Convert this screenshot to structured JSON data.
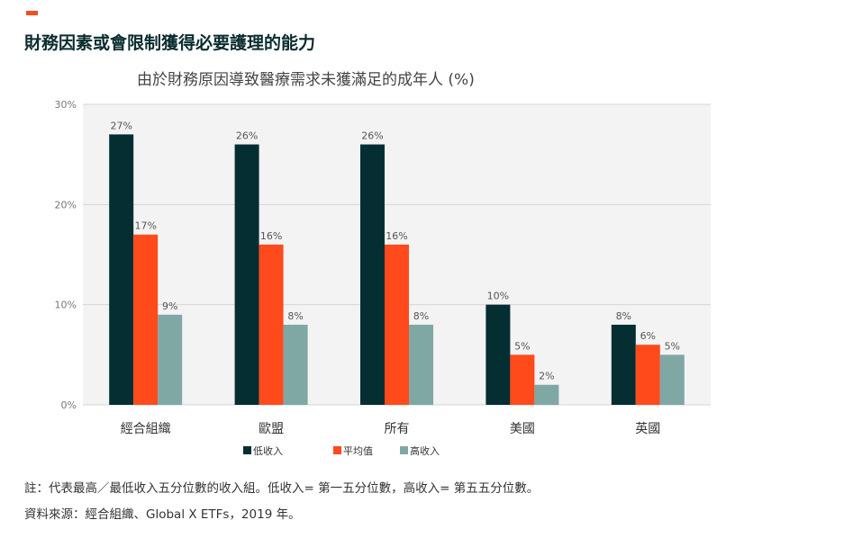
{
  "header": {
    "title": "財務因素或會限制獲得必要護理的能力"
  },
  "colors": {
    "accent": "#f04e23",
    "low_income": "#052e33",
    "average": "#ff4a1c",
    "high_income": "#7fa8a5",
    "plot_background": "#f3f3f3"
  },
  "chart_data": {
    "type": "bar",
    "title": "由於財務原因導致醫療需求未獲滿足的成年人 (%)",
    "xlabel": "",
    "ylabel": "",
    "ylim": [
      0,
      30
    ],
    "yticks": [
      0,
      10,
      20,
      30
    ],
    "ytick_labels": [
      "0%",
      "10%",
      "20%",
      "30%"
    ],
    "categories": [
      "經合組織",
      "歐盟",
      "所有",
      "美國",
      "英國"
    ],
    "series": [
      {
        "name": "低收入",
        "color": "#052e33",
        "values": [
          27,
          26,
          26,
          10,
          8
        ],
        "labels": [
          "27%",
          "26%",
          "26%",
          "10%",
          "8%"
        ]
      },
      {
        "name": "平均值",
        "color": "#ff4a1c",
        "values": [
          17,
          16,
          16,
          5,
          6
        ],
        "labels": [
          "17%",
          "16%",
          "16%",
          "5%",
          "6%"
        ]
      },
      {
        "name": "高收入",
        "color": "#7fa8a5",
        "values": [
          9,
          8,
          8,
          2,
          5
        ],
        "labels": [
          "9%",
          "8%",
          "8%",
          "2%",
          "5%"
        ]
      }
    ],
    "grid": true,
    "legend_position": "bottom-center"
  },
  "footnotes": {
    "note": "註：代表最高／最低收入五分位數的收入組。低收入= 第一五分位數，高收入= 第五五分位數。",
    "source": "資料來源：經合組織、Global X ETFs，2019 年。"
  }
}
